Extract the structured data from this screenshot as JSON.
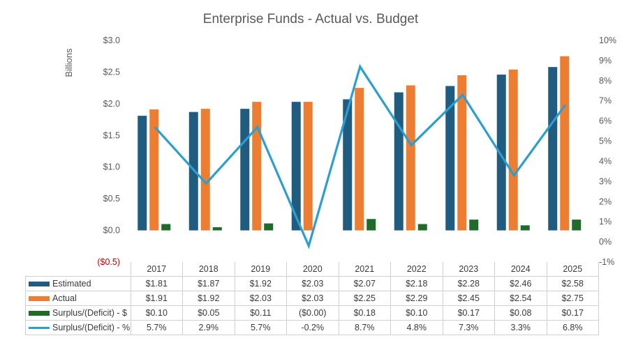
{
  "chart_data": {
    "type": "bar",
    "title": "Enterprise Funds - Actual vs. Budget",
    "ylabel": "Billions",
    "y2label": "",
    "categories": [
      "2017",
      "2018",
      "2019",
      "2020",
      "2021",
      "2022",
      "2023",
      "2024",
      "2025"
    ],
    "ylim": [
      -0.5,
      3.0
    ],
    "y2lim": [
      -1,
      10
    ],
    "y_ticks": [
      "$3.0",
      "$2.5",
      "$2.0",
      "$1.5",
      "$1.0",
      "$0.5",
      "$0.0",
      "($0.5)"
    ],
    "y_tick_values": [
      3.0,
      2.5,
      2.0,
      1.5,
      1.0,
      0.5,
      0.0,
      -0.5
    ],
    "y2_ticks": [
      "10%",
      "9%",
      "8%",
      "7%",
      "6%",
      "5%",
      "4%",
      "3%",
      "2%",
      "1%",
      "0%",
      "-1%"
    ],
    "y2_tick_values": [
      10,
      9,
      8,
      7,
      6,
      5,
      4,
      3,
      2,
      1,
      0,
      -1
    ],
    "grid": false,
    "legend": "data-table",
    "series": [
      {
        "name": "Estimated",
        "kind": "bar",
        "axis": "left",
        "color": "#1f5c80",
        "values": [
          1.81,
          1.87,
          1.92,
          2.03,
          2.07,
          2.18,
          2.28,
          2.46,
          2.58
        ],
        "labels": [
          "$1.81",
          "$1.87",
          "$1.92",
          "$2.03",
          "$2.07",
          "$2.18",
          "$2.28",
          "$2.46",
          "$2.58"
        ]
      },
      {
        "name": "Actual",
        "kind": "bar",
        "axis": "left",
        "color": "#ed7d31",
        "values": [
          1.91,
          1.92,
          2.03,
          2.03,
          2.25,
          2.29,
          2.45,
          2.54,
          2.75
        ],
        "labels": [
          "$1.91",
          "$1.92",
          "$2.03",
          "$2.03",
          "$2.25",
          "$2.29",
          "$2.45",
          "$2.54",
          "$2.75"
        ]
      },
      {
        "name": "Surplus/(Deficit) - $",
        "kind": "bar",
        "axis": "left",
        "color": "#1e6b2a",
        "values": [
          0.1,
          0.05,
          0.11,
          0.0,
          0.18,
          0.1,
          0.17,
          0.08,
          0.17
        ],
        "labels": [
          "$0.10",
          "$0.05",
          "$0.11",
          "($0.00)",
          "$0.18",
          "$0.10",
          "$0.17",
          "$0.08",
          "$0.17"
        ]
      },
      {
        "name": "Surplus/(Deficit) - %",
        "kind": "line",
        "axis": "right",
        "color": "#2a9fd0",
        "values": [
          5.7,
          2.9,
          5.7,
          -0.2,
          8.7,
          4.8,
          7.3,
          3.3,
          6.8
        ],
        "labels": [
          "5.7%",
          "2.9%",
          "5.7%",
          "-0.2%",
          "8.7%",
          "4.8%",
          "7.3%",
          "3.3%",
          "6.8%"
        ]
      }
    ]
  }
}
